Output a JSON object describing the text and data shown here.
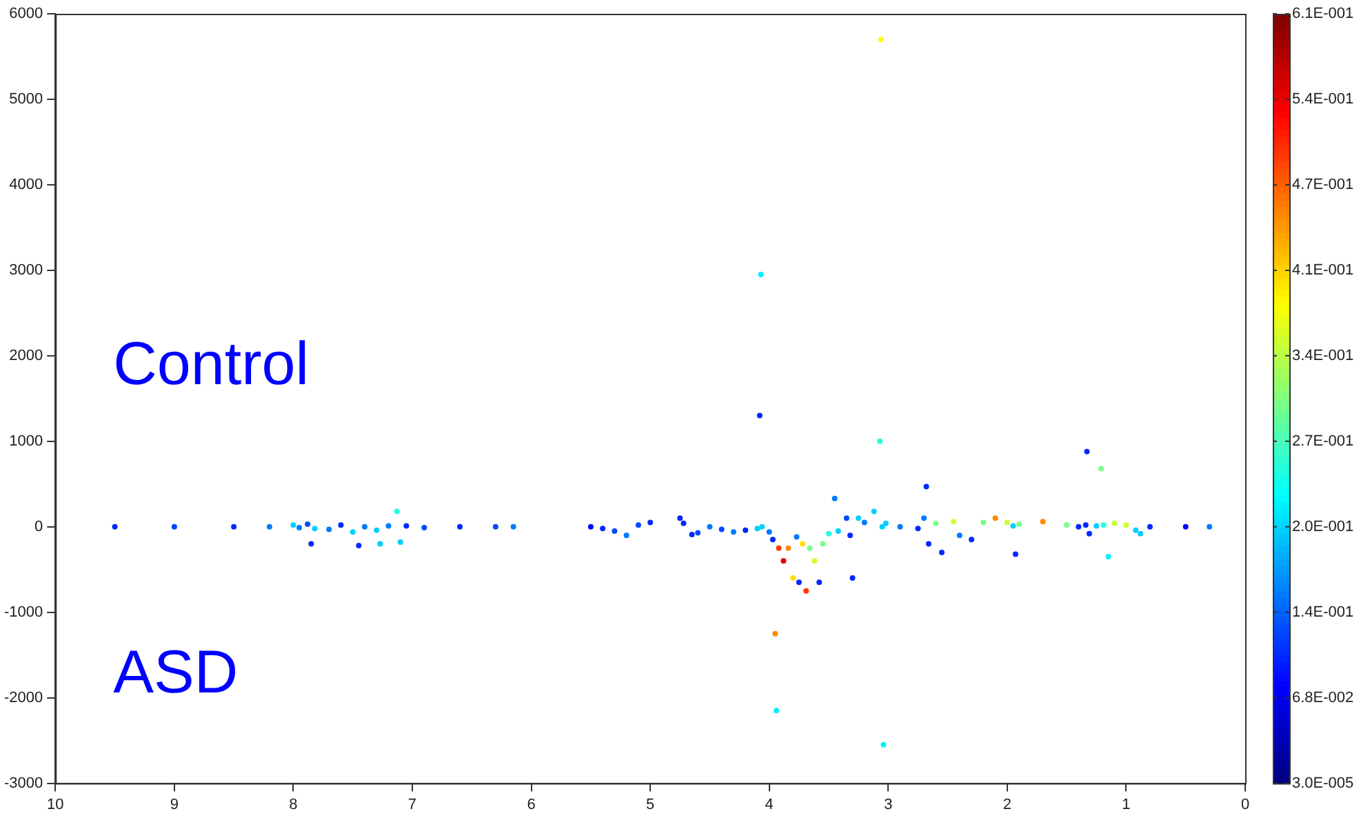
{
  "chart_data": {
    "type": "scatter",
    "annotations": [
      "Control",
      "ASD"
    ],
    "xlim": [
      10,
      0
    ],
    "xticks": [
      10,
      9,
      8,
      7,
      6,
      5,
      4,
      3,
      2,
      1,
      0
    ],
    "ylim": [
      -3000,
      6000
    ],
    "yticks": [
      -3000,
      -2000,
      -1000,
      0,
      1000,
      2000,
      3000,
      4000,
      5000,
      6000
    ],
    "clim": [
      3e-05,
      0.61
    ],
    "cticks": [
      {
        "value": 3e-05,
        "label": "3.0E-005"
      },
      {
        "value": 0.0678,
        "label": "6.8E-002"
      },
      {
        "value": 0.1356,
        "label": "1.4E-001"
      },
      {
        "value": 0.2033,
        "label": "2.0E-001"
      },
      {
        "value": 0.2711,
        "label": "2.7E-001"
      },
      {
        "value": 0.3389,
        "label": "3.4E-001"
      },
      {
        "value": 0.4066,
        "label": "4.1E-001"
      },
      {
        "value": 0.4744,
        "label": "4.7E-001"
      },
      {
        "value": 0.5422,
        "label": "5.4E-001"
      },
      {
        "value": 0.61,
        "label": "6.1E-001"
      }
    ],
    "grid": false,
    "legend": false,
    "marker": "circle",
    "series": [
      {
        "x": [
          9.5,
          9.0,
          8.5,
          8.2,
          8.0,
          7.95,
          7.88,
          7.85,
          7.82,
          7.7,
          7.6,
          7.5,
          7.45,
          7.4,
          7.3,
          7.27,
          7.2,
          7.13,
          7.1,
          7.05,
          6.9,
          6.6,
          6.3,
          6.15,
          5.5,
          5.4,
          5.3,
          5.2,
          5.1,
          5.0,
          4.75,
          4.72,
          4.65,
          4.6,
          4.5,
          4.4,
          4.3,
          4.2,
          4.1,
          4.08,
          4.07,
          4.06,
          4.0,
          3.97,
          3.95,
          3.94,
          3.92,
          3.88,
          3.84,
          3.8,
          3.77,
          3.75,
          3.72,
          3.69,
          3.66,
          3.62,
          3.58,
          3.55,
          3.5,
          3.45,
          3.42,
          3.35,
          3.32,
          3.3,
          3.25,
          3.2,
          3.12,
          3.07,
          3.06,
          3.05,
          3.04,
          3.02,
          2.9,
          2.75,
          2.7,
          2.68,
          2.66,
          2.6,
          2.55,
          2.45,
          2.4,
          2.3,
          2.2,
          2.1,
          2.0,
          1.95,
          1.93,
          1.9,
          1.7,
          1.5,
          1.4,
          1.34,
          1.33,
          1.31,
          1.25,
          1.21,
          1.19,
          1.15,
          1.1,
          1.0,
          0.92,
          0.88,
          0.8,
          0.5,
          0.3
        ],
        "values": [
          0,
          0,
          0,
          0,
          20,
          -10,
          30,
          -200,
          -20,
          -30,
          20,
          -60,
          -220,
          0,
          -40,
          -200,
          10,
          180,
          -180,
          10,
          -10,
          0,
          0,
          0,
          0,
          -20,
          -50,
          -100,
          20,
          50,
          100,
          40,
          -90,
          -70,
          0,
          -30,
          -60,
          -40,
          -20,
          1300,
          2950,
          0,
          -60,
          -150,
          -1250,
          -2150,
          -250,
          -400,
          -250,
          -600,
          -120,
          -650,
          -200,
          -750,
          -250,
          -400,
          -650,
          -200,
          -80,
          330,
          -50,
          100,
          -100,
          -600,
          100,
          50,
          180,
          1000,
          5700,
          0,
          -2550,
          40,
          0,
          -20,
          100,
          470,
          -200,
          40,
          -300,
          60,
          -100,
          -150,
          50,
          100,
          50,
          10,
          -320,
          30,
          60,
          20,
          0,
          20,
          880,
          -80,
          10,
          680,
          20,
          -350,
          40,
          20,
          -40,
          -80,
          0,
          0,
          0
        ],
        "cvalues": [
          0.1,
          0.12,
          0.1,
          0.15,
          0.2,
          0.15,
          0.12,
          0.1,
          0.2,
          0.15,
          0.1,
          0.2,
          0.1,
          0.15,
          0.2,
          0.2,
          0.15,
          0.25,
          0.2,
          0.1,
          0.12,
          0.1,
          0.12,
          0.15,
          0.08,
          0.1,
          0.12,
          0.15,
          0.12,
          0.1,
          0.1,
          0.1,
          0.1,
          0.12,
          0.15,
          0.12,
          0.15,
          0.1,
          0.2,
          0.1,
          0.22,
          0.2,
          0.15,
          0.1,
          0.45,
          0.22,
          0.5,
          0.55,
          0.45,
          0.4,
          0.15,
          0.1,
          0.4,
          0.5,
          0.3,
          0.35,
          0.1,
          0.3,
          0.25,
          0.15,
          0.2,
          0.12,
          0.1,
          0.1,
          0.2,
          0.15,
          0.2,
          0.25,
          0.38,
          0.2,
          0.22,
          0.2,
          0.15,
          0.1,
          0.15,
          0.1,
          0.1,
          0.3,
          0.1,
          0.35,
          0.15,
          0.1,
          0.3,
          0.45,
          0.35,
          0.2,
          0.1,
          0.3,
          0.45,
          0.3,
          0.1,
          0.1,
          0.1,
          0.1,
          0.2,
          0.3,
          0.25,
          0.22,
          0.35,
          0.35,
          0.2,
          0.2,
          0.1,
          0.08,
          0.15
        ]
      }
    ]
  }
}
